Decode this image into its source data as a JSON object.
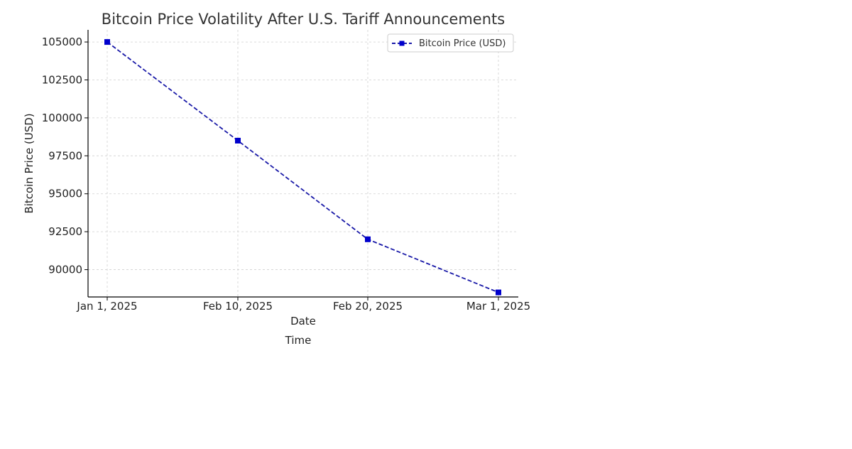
{
  "chart_data": {
    "type": "line",
    "title": "Bitcoin Price Volatility After U.S. Tariff Announcements",
    "xlabel": "Date",
    "xlabel_secondary": "Time",
    "ylabel": "Bitcoin Price (USD)",
    "categories": [
      "Jan 1, 2025",
      "Feb 10, 2025",
      "Feb 20, 2025",
      "Mar 1, 2025"
    ],
    "series": [
      {
        "name": "Bitcoin Price (USD)",
        "values": [
          105000,
          98500,
          92000,
          88500
        ],
        "color": "#1a1aa8",
        "marker_color": "#0000cc",
        "line_style": "dashed",
        "marker": "square"
      }
    ],
    "yticks": [
      90000,
      92500,
      95000,
      97500,
      100000,
      102500,
      105000
    ],
    "ylim": [
      88200,
      105800
    ],
    "grid": true,
    "legend_position": "top-right"
  }
}
